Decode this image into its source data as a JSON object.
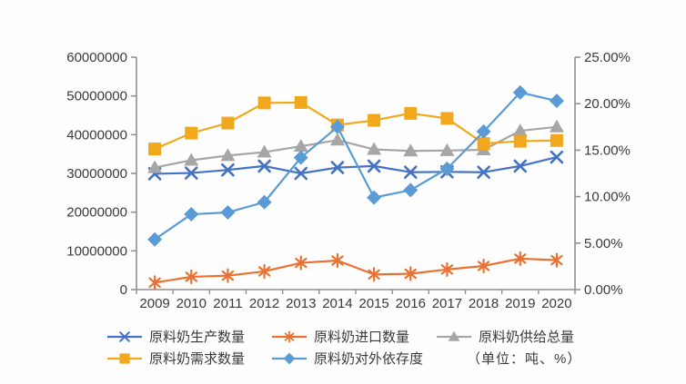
{
  "chart_data": {
    "type": "line",
    "title": "",
    "unit_note": "（单位：吨、%）",
    "x": [
      "2009",
      "2010",
      "2011",
      "2012",
      "2013",
      "2014",
      "2015",
      "2016",
      "2017",
      "2018",
      "2019",
      "2020"
    ],
    "left_axis": {
      "min": 0,
      "max": 60000000,
      "step": 10000000,
      "labels": [
        "0",
        "10000000",
        "20000000",
        "30000000",
        "40000000",
        "50000000",
        "60000000"
      ]
    },
    "right_axis": {
      "min": 0,
      "max": 25,
      "step": 5,
      "labels": [
        "0.00%",
        "5.00%",
        "10.00%",
        "15.00%",
        "20.00%",
        "25.00%"
      ]
    },
    "grid": "off",
    "legend_position": "bottom",
    "series": [
      {
        "id": "production",
        "name": "原料奶生产数量",
        "axis": "left",
        "marker": "x",
        "color": "#4472C4",
        "values": [
          29900000,
          30100000,
          30900000,
          31900000,
          30000000,
          31500000,
          31900000,
          30300000,
          30400000,
          30300000,
          31900000,
          34200000
        ]
      },
      {
        "id": "imports",
        "name": "原料奶进口数量",
        "axis": "left",
        "marker": "asterisk",
        "color": "#E97132",
        "values": [
          1800000,
          3300000,
          3600000,
          4700000,
          6900000,
          7500000,
          3900000,
          4100000,
          5200000,
          6100000,
          8000000,
          7600000
        ]
      },
      {
        "id": "total_supply",
        "name": "原料奶供给总量",
        "axis": "left",
        "marker": "triangle",
        "color": "#A6A6A6",
        "values": [
          31500000,
          33400000,
          34600000,
          35500000,
          37000000,
          38600000,
          36200000,
          35800000,
          35900000,
          36100000,
          41000000,
          42000000
        ]
      },
      {
        "id": "demand",
        "name": "原料奶需求数量",
        "axis": "left",
        "marker": "square",
        "color": "#F2A81D",
        "values": [
          36300000,
          40400000,
          43000000,
          48200000,
          48300000,
          42500000,
          43700000,
          45500000,
          44200000,
          37700000,
          38300000,
          38500000
        ]
      },
      {
        "id": "dependence",
        "name": "原料奶对外依存度",
        "axis": "right",
        "marker": "diamond",
        "color": "#5B9BD5",
        "values": [
          5.4,
          8.1,
          8.3,
          9.4,
          14.2,
          17.5,
          9.9,
          10.7,
          13.0,
          17.0,
          21.2,
          20.3
        ]
      }
    ],
    "legend_rows": [
      [
        "production",
        "imports",
        "total_supply"
      ],
      [
        "demand",
        "dependence"
      ]
    ]
  },
  "style": {
    "axis_line_color": "#8f8f8f",
    "tick_label_color": "#3a3a3a"
  }
}
